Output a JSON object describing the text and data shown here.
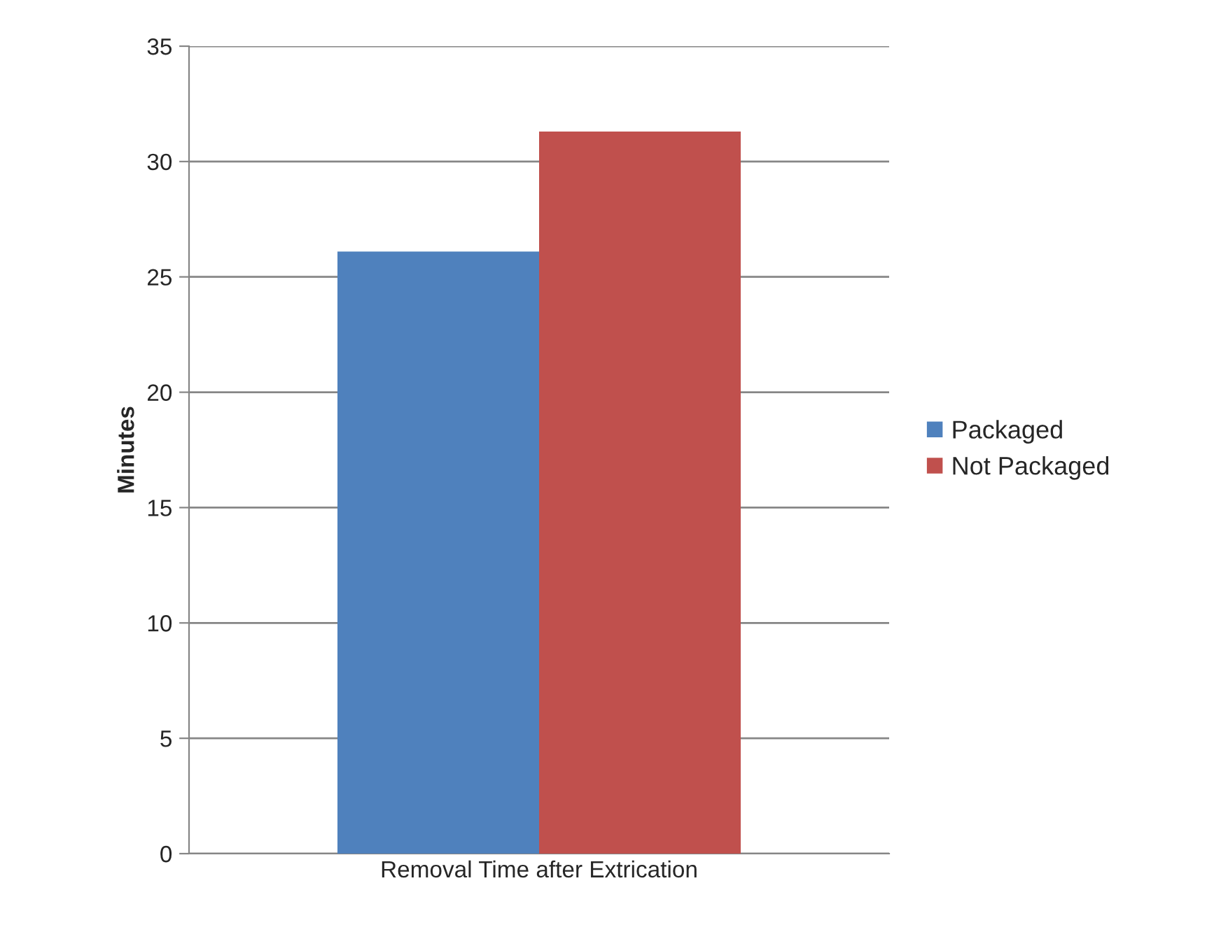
{
  "chart_data": {
    "type": "bar",
    "categories": [
      "Removal Time after Extrication"
    ],
    "ylabel": "Minutes",
    "series": [
      {
        "name": "Packaged",
        "color": "#4f81bd",
        "values": [
          26.1
        ]
      },
      {
        "name": "Not Packaged",
        "color": "#c0504d",
        "values": [
          31.3
        ]
      }
    ],
    "ylim": [
      0,
      35
    ],
    "yticks": [
      0,
      5,
      10,
      15,
      20,
      25,
      30,
      35
    ],
    "grid": "y",
    "legend": "right"
  }
}
